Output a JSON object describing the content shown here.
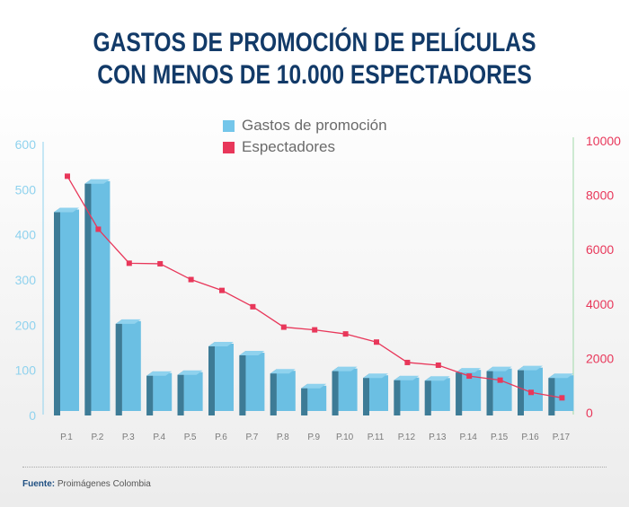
{
  "title": {
    "line1": "GASTOS DE PROMOCIÓN DE PELÍCULAS",
    "line2": "CON MENOS DE 10.000 ESPECTADORES"
  },
  "legend": {
    "bars_label": "Gastos de promoción",
    "line_label": "Espectadores"
  },
  "source": {
    "label": "Fuente:",
    "text": "Proimágenes Colombia"
  },
  "colors": {
    "bar_front": "#6bbfe3",
    "bar_top": "#8fd2ee",
    "bar_side": "#3d7b96",
    "line": "#e8375a",
    "left_axis": "#8fd2ee",
    "right_axis": "#e8375a",
    "title": "#123a68"
  },
  "chart_data": {
    "type": "bar",
    "title": "GASTOS DE PROMOCIÓN DE PELÍCULAS CON MENOS DE 10.000 ESPECTADORES",
    "categories": [
      "P.1",
      "P.2",
      "P.3",
      "P.4",
      "P.5",
      "P.6",
      "P.7",
      "P.8",
      "P.9",
      "P.10",
      "P.11",
      "P.12",
      "P.13",
      "P.14",
      "P.15",
      "P.16",
      "P.17"
    ],
    "series": [
      {
        "name": "Gastos de promoción",
        "type": "bar",
        "axis": "left",
        "values": [
          450,
          513,
          203,
          88,
          90,
          153,
          133,
          93,
          60,
          98,
          83,
          78,
          77,
          95,
          98,
          100,
          83
        ]
      },
      {
        "name": "Espectadores",
        "type": "line",
        "axis": "right",
        "values": [
          8700,
          6750,
          5500,
          5480,
          4900,
          4500,
          3900,
          3150,
          3050,
          2900,
          2600,
          1850,
          1750,
          1350,
          1200,
          750,
          550
        ]
      }
    ],
    "y_left": {
      "ticks": [
        "0",
        "100",
        "200",
        "300",
        "400",
        "500",
        "600"
      ],
      "ylim": [
        0,
        600
      ]
    },
    "y_right": {
      "ticks": [
        "0",
        "2000",
        "4000",
        "6000",
        "8000",
        "10000"
      ],
      "ylim": [
        0,
        10000
      ]
    },
    "legend_position": "top-center",
    "grid": false
  }
}
